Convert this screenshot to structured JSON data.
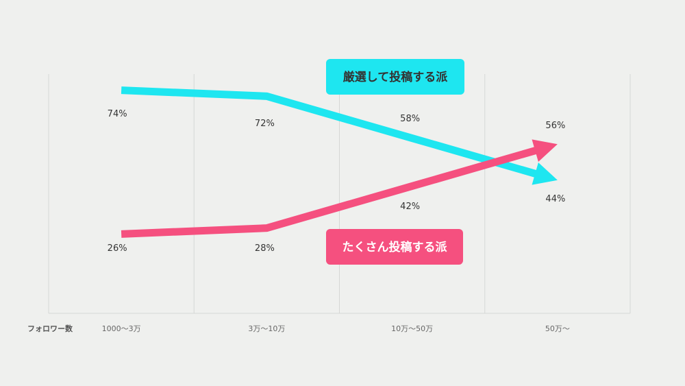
{
  "chart_data": {
    "type": "line",
    "x_label": "フォロワー数",
    "categories": [
      "1000〜3万",
      "3万〜10万",
      "10万〜50万",
      "50万〜"
    ],
    "series": [
      {
        "name": "厳選して投稿する派",
        "color": "#1ee6f0",
        "values": [
          74,
          72,
          58,
          44
        ],
        "value_labels": [
          "74%",
          "72%",
          "58%",
          "44%"
        ]
      },
      {
        "name": "たくさん投稿する派",
        "color": "#f5507f",
        "values": [
          26,
          28,
          42,
          56
        ],
        "value_labels": [
          "26%",
          "28%",
          "42%",
          "56%"
        ]
      }
    ],
    "ylim": [
      0,
      100
    ],
    "grid": true
  }
}
